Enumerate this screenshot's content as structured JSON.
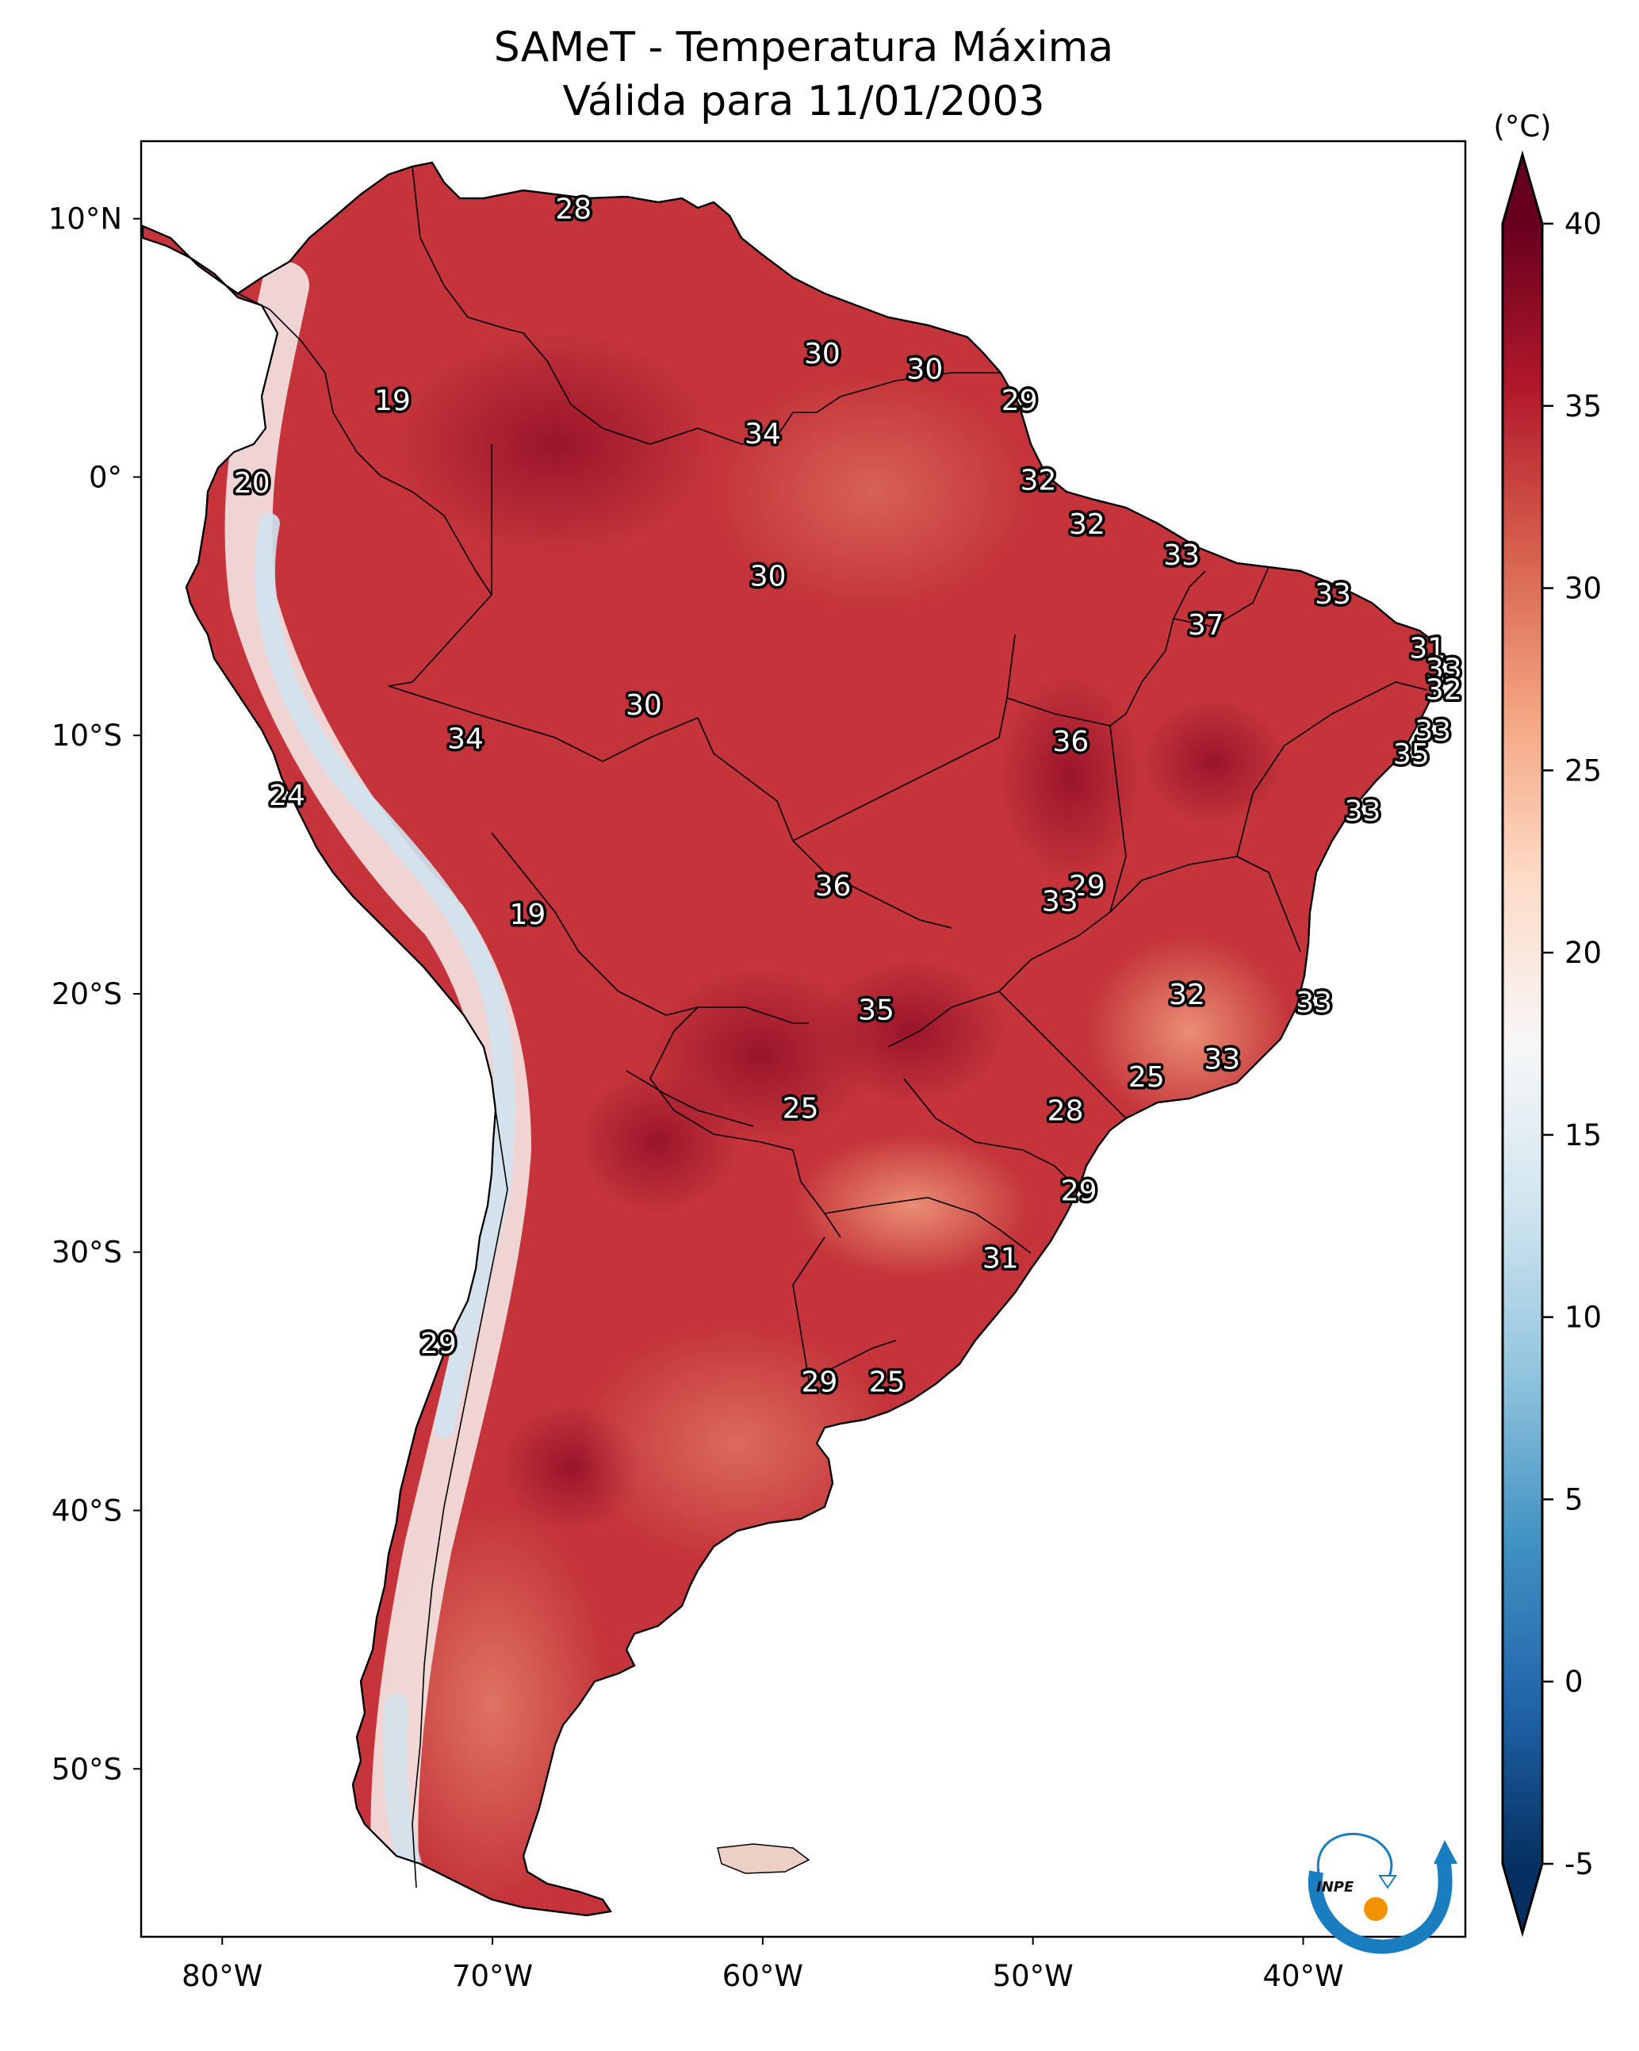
{
  "title": {
    "line1": "SAMeT - Temperatura Máxima",
    "line2": "Válida para 11/01/2003"
  },
  "colorbar": {
    "unit_label": "(°C)",
    "min": -5,
    "max": 40,
    "ticks": [
      "40",
      "35",
      "30",
      "25",
      "20",
      "15",
      "10",
      "5",
      "0",
      "-5"
    ],
    "tick_values": [
      40,
      35,
      30,
      25,
      20,
      15,
      10,
      5,
      0,
      -5
    ],
    "extend": "both",
    "colormap": "RdBu_r",
    "stops": [
      "#053061",
      "#2166ac",
      "#4393c3",
      "#92c5de",
      "#d1e5f0",
      "#f7f7f7",
      "#fddbc7",
      "#f4a582",
      "#d6604d",
      "#b2182b",
      "#67001f"
    ]
  },
  "logo": {
    "text": "INPE",
    "arc_color": "#1a7dc0",
    "dot_color": "#f39200"
  },
  "chart_data": {
    "type": "heatmap",
    "title": "SAMeT - Temperatura Máxima — Válida para 11/01/2003",
    "variable": "Maximum temperature",
    "units": "°C",
    "region": "South America",
    "xlabel": "",
    "ylabel": "",
    "x_ticks": [
      "80°W",
      "70°W",
      "60°W",
      "50°W",
      "40°W"
    ],
    "x_tick_values": [
      -80,
      -70,
      -60,
      -50,
      -40
    ],
    "y_ticks": [
      "10°N",
      "0°",
      "10°S",
      "20°S",
      "30°S",
      "40°S",
      "50°S"
    ],
    "y_tick_values": [
      10,
      0,
      -10,
      -20,
      -30,
      -40,
      -50
    ],
    "xlim": [
      -83,
      -34
    ],
    "ylim": [
      -56.5,
      13
    ],
    "color_range": [
      -5,
      40
    ],
    "contour_labels": [
      {
        "lon": -67.0,
        "lat": 10.4,
        "value": 28
      },
      {
        "lon": -57.8,
        "lat": 4.8,
        "value": 30
      },
      {
        "lon": -54.0,
        "lat": 4.2,
        "value": 30
      },
      {
        "lon": -50.5,
        "lat": 3.0,
        "value": 29
      },
      {
        "lon": -73.7,
        "lat": 3.0,
        "value": 19
      },
      {
        "lon": -60.0,
        "lat": 1.7,
        "value": 34
      },
      {
        "lon": -78.9,
        "lat": -0.2,
        "value": 20
      },
      {
        "lon": -49.8,
        "lat": -0.1,
        "value": 32
      },
      {
        "lon": -48.0,
        "lat": -1.8,
        "value": 32
      },
      {
        "lon": -44.5,
        "lat": -3.0,
        "value": 33
      },
      {
        "lon": -59.8,
        "lat": -3.8,
        "value": 30
      },
      {
        "lon": -38.9,
        "lat": -4.5,
        "value": 33
      },
      {
        "lon": -43.6,
        "lat": -5.7,
        "value": 37
      },
      {
        "lon": -35.4,
        "lat": -6.6,
        "value": 31
      },
      {
        "lon": -34.8,
        "lat": -7.4,
        "value": 33
      },
      {
        "lon": -34.8,
        "lat": -8.2,
        "value": 32
      },
      {
        "lon": -64.4,
        "lat": -8.8,
        "value": 30
      },
      {
        "lon": -35.2,
        "lat": -9.8,
        "value": 33
      },
      {
        "lon": -71.0,
        "lat": -10.1,
        "value": 34
      },
      {
        "lon": -48.6,
        "lat": -10.2,
        "value": 36
      },
      {
        "lon": -36.0,
        "lat": -10.7,
        "value": 35
      },
      {
        "lon": -77.6,
        "lat": -12.3,
        "value": 24
      },
      {
        "lon": -37.8,
        "lat": -12.9,
        "value": 33
      },
      {
        "lon": -57.4,
        "lat": -15.8,
        "value": 36
      },
      {
        "lon": -48.0,
        "lat": -15.8,
        "value": 29
      },
      {
        "lon": -49.0,
        "lat": -16.4,
        "value": 33
      },
      {
        "lon": -68.7,
        "lat": -16.9,
        "value": 19
      },
      {
        "lon": -44.3,
        "lat": -20.0,
        "value": 32
      },
      {
        "lon": -39.6,
        "lat": -20.3,
        "value": 33
      },
      {
        "lon": -55.8,
        "lat": -20.6,
        "value": 35
      },
      {
        "lon": -43.0,
        "lat": -22.5,
        "value": 33
      },
      {
        "lon": -45.8,
        "lat": -23.2,
        "value": 25
      },
      {
        "lon": -58.6,
        "lat": -24.4,
        "value": 25
      },
      {
        "lon": -48.8,
        "lat": -24.5,
        "value": 28
      },
      {
        "lon": -48.3,
        "lat": -27.6,
        "value": 29
      },
      {
        "lon": -51.2,
        "lat": -30.2,
        "value": 31
      },
      {
        "lon": -72.0,
        "lat": -33.5,
        "value": 29
      },
      {
        "lon": -57.9,
        "lat": -35.0,
        "value": 29
      },
      {
        "lon": -55.4,
        "lat": -35.0,
        "value": 25
      }
    ]
  }
}
